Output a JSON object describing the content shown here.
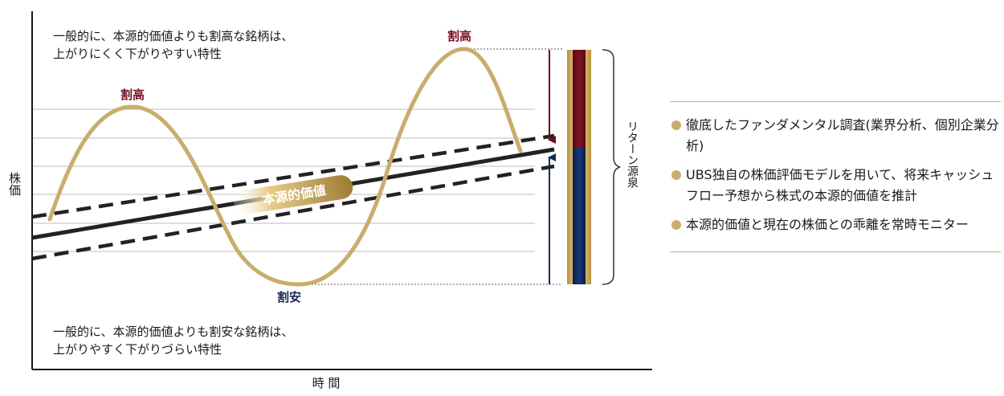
{
  "diagram": {
    "note_top": "一般的に、本源的価値よりも割高な銘柄は、\n上がりにくく下がりやすい特性",
    "note_bottom": "一般的に、本源的価値よりも割安な銘柄は、\n上がりやすく下がりづらい特性",
    "label_overvalued": "割高",
    "label_undervalued": "割安",
    "intrinsic_value_label": "本源的価値",
    "y_axis_label": "株価",
    "x_axis_label": "時 間",
    "return_source_label": "リターン源泉",
    "colors": {
      "gold": "#c9ad6d",
      "burgundy": "#6b0f1a",
      "navy": "#0f2a5a",
      "line": "#222222"
    }
  },
  "panel": {
    "items": [
      "徹底したファンダメンタル調査(業界分析、個別企業分析)",
      "UBS独自の株価評価モデルを用いて、将来キャッシュフロー予想から株式の本源的価値を推計",
      "本源的価値と現在の株価との乖離を常時モニター"
    ]
  }
}
